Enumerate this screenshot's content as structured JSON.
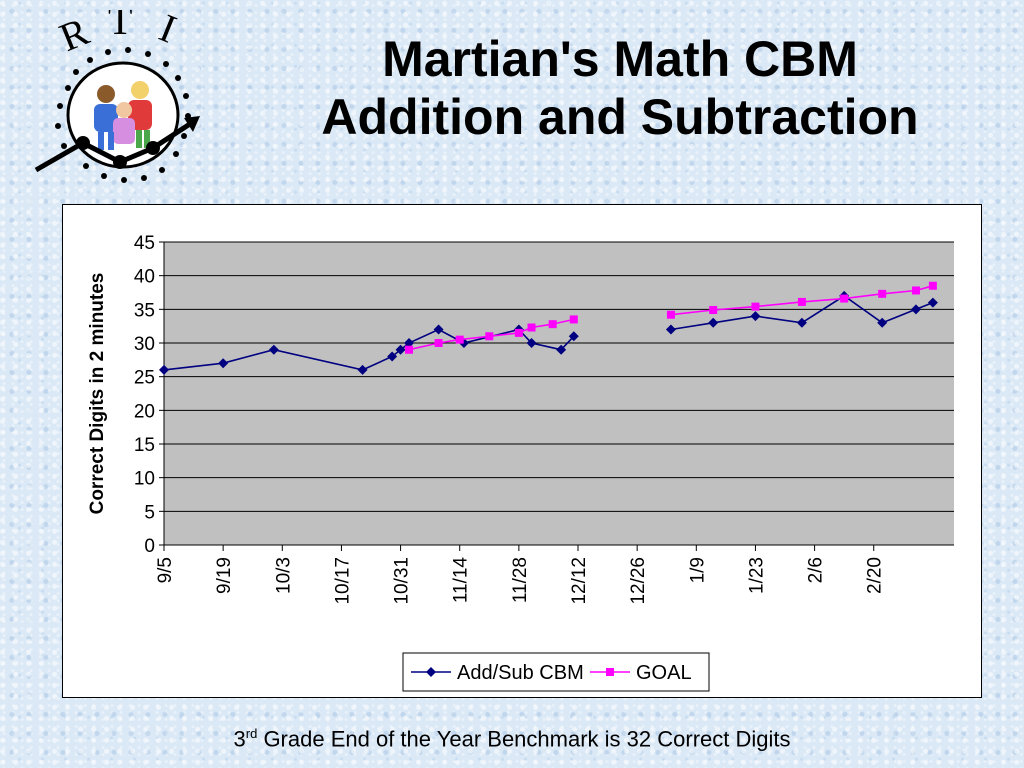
{
  "logo": {
    "text": "RTI"
  },
  "slide": {
    "title_line1": "Martian's Math CBM",
    "title_line2": "Addition and Subtraction",
    "footer_num": "3",
    "footer_sup": "rd",
    "footer_rest": " Grade End of the Year Benchmark is 32 Correct Digits"
  },
  "chart_data": {
    "type": "line",
    "ylabel": "Correct Digits in 2 minutes",
    "xlabel": "",
    "ylim": [
      0,
      45
    ],
    "yticks": [
      0,
      5,
      10,
      15,
      20,
      25,
      30,
      35,
      40,
      45
    ],
    "xlim": [
      "9/5",
      "3/10"
    ],
    "xticks": [
      "9/5",
      "9/19",
      "10/3",
      "10/17",
      "10/31",
      "11/14",
      "11/28",
      "12/12",
      "12/26",
      "1/9",
      "1/23",
      "2/6",
      "2/20"
    ],
    "grid": "horizontal",
    "legend": "bottom",
    "plot_bg": "#c0c0c0",
    "series": [
      {
        "name": "Add/Sub CBM",
        "color": "#000080",
        "marker": "diamond",
        "segments": [
          [
            {
              "x": "9/5",
              "y": 26
            },
            {
              "x": "9/19",
              "y": 27
            },
            {
              "x": "10/1",
              "y": 29
            },
            {
              "x": "10/22",
              "y": 26
            },
            {
              "x": "10/29",
              "y": 28
            },
            {
              "x": "10/31",
              "y": 29
            },
            {
              "x": "11/2",
              "y": 30
            },
            {
              "x": "11/9",
              "y": 32
            },
            {
              "x": "11/15",
              "y": 30
            },
            {
              "x": "11/28",
              "y": 32
            },
            {
              "x": "12/1",
              "y": 30
            },
            {
              "x": "12/8",
              "y": 29
            },
            {
              "x": "12/11",
              "y": 31
            }
          ],
          [
            {
              "x": "1/3",
              "y": 32
            },
            {
              "x": "1/13",
              "y": 33
            },
            {
              "x": "1/23",
              "y": 34
            },
            {
              "x": "2/3",
              "y": 33
            },
            {
              "x": "2/13",
              "y": 37
            },
            {
              "x": "2/22",
              "y": 33
            },
            {
              "x": "3/1",
              "y": 35
            },
            {
              "x": "3/5",
              "y": 36
            }
          ]
        ]
      },
      {
        "name": "GOAL",
        "color": "#ff00ff",
        "marker": "square",
        "segments": [
          [
            {
              "x": "11/2",
              "y": 29
            },
            {
              "x": "11/9",
              "y": 30
            },
            {
              "x": "11/14",
              "y": 30.5
            },
            {
              "x": "11/21",
              "y": 31
            },
            {
              "x": "11/28",
              "y": 31.5
            },
            {
              "x": "12/1",
              "y": 32.3
            },
            {
              "x": "12/6",
              "y": 32.8
            },
            {
              "x": "12/11",
              "y": 33.5
            }
          ],
          [
            {
              "x": "1/3",
              "y": 34.2
            },
            {
              "x": "1/13",
              "y": 34.9
            },
            {
              "x": "1/23",
              "y": 35.4
            },
            {
              "x": "2/3",
              "y": 36.1
            },
            {
              "x": "2/13",
              "y": 36.6
            },
            {
              "x": "2/22",
              "y": 37.3
            },
            {
              "x": "3/1",
              "y": 37.8
            },
            {
              "x": "3/5",
              "y": 38.5
            }
          ]
        ]
      }
    ]
  }
}
